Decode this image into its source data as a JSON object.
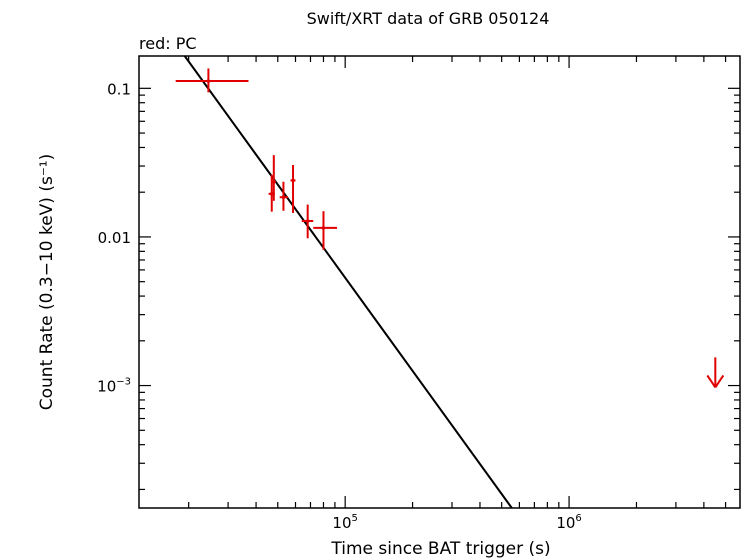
{
  "chart_data": {
    "type": "scatter",
    "title": "Swift/XRT data of GRB 050124",
    "legend_text": "red: PC",
    "legend_placement": "top-left",
    "xlabel": "Time since BAT trigger (s)",
    "ylabel": "Count Rate (0.3−10 keV) (s⁻¹)",
    "x_scale": "log",
    "y_scale": "log",
    "xlim": [
      12000,
      5800000
    ],
    "ylim": [
      0.00015,
      0.165
    ],
    "x_ticks": [
      {
        "value": 100000,
        "mantissa": "10",
        "exp": "5"
      },
      {
        "value": 1000000,
        "mantissa": "10",
        "exp": "6"
      }
    ],
    "y_ticks": [
      {
        "value": 0.1,
        "label": "0.1"
      },
      {
        "value": 0.01,
        "label": "0.01"
      },
      {
        "value": 0.001,
        "mantissa": "10",
        "exp": "−3"
      }
    ],
    "grid": false,
    "series": [
      {
        "color": "#e00000",
        "points": [
          {
            "x": 24500,
            "y": 0.112,
            "xlo": 17500,
            "xhi": 37000,
            "ylo": 0.094,
            "yhi": 0.136
          },
          {
            "x": 47000,
            "y": 0.0195,
            "xlo": 45500,
            "xhi": 48500,
            "ylo": 0.0148,
            "yhi": 0.0262
          },
          {
            "x": 48000,
            "y": 0.0235,
            "xlo": 47000,
            "xhi": 49000,
            "ylo": 0.0175,
            "yhi": 0.0355
          },
          {
            "x": 53000,
            "y": 0.0185,
            "xlo": 51000,
            "xhi": 55500,
            "ylo": 0.015,
            "yhi": 0.0235
          },
          {
            "x": 58500,
            "y": 0.024,
            "xlo": 57000,
            "xhi": 60000,
            "ylo": 0.0145,
            "yhi": 0.0305
          },
          {
            "x": 68000,
            "y": 0.0128,
            "xlo": 64000,
            "xhi": 72000,
            "ylo": 0.0098,
            "yhi": 0.0165
          },
          {
            "x": 80000,
            "y": 0.0115,
            "xlo": 72000,
            "xhi": 92000,
            "ylo": 0.0082,
            "yhi": 0.0149
          }
        ],
        "upper_limits": [
          {
            "x": 4500000,
            "y": 0.0011
          }
        ]
      }
    ],
    "model_line": {
      "color": "#000000",
      "x": [
        19200,
        555000
      ],
      "y": 0.165,
      "y_end": 0.00015
    }
  }
}
